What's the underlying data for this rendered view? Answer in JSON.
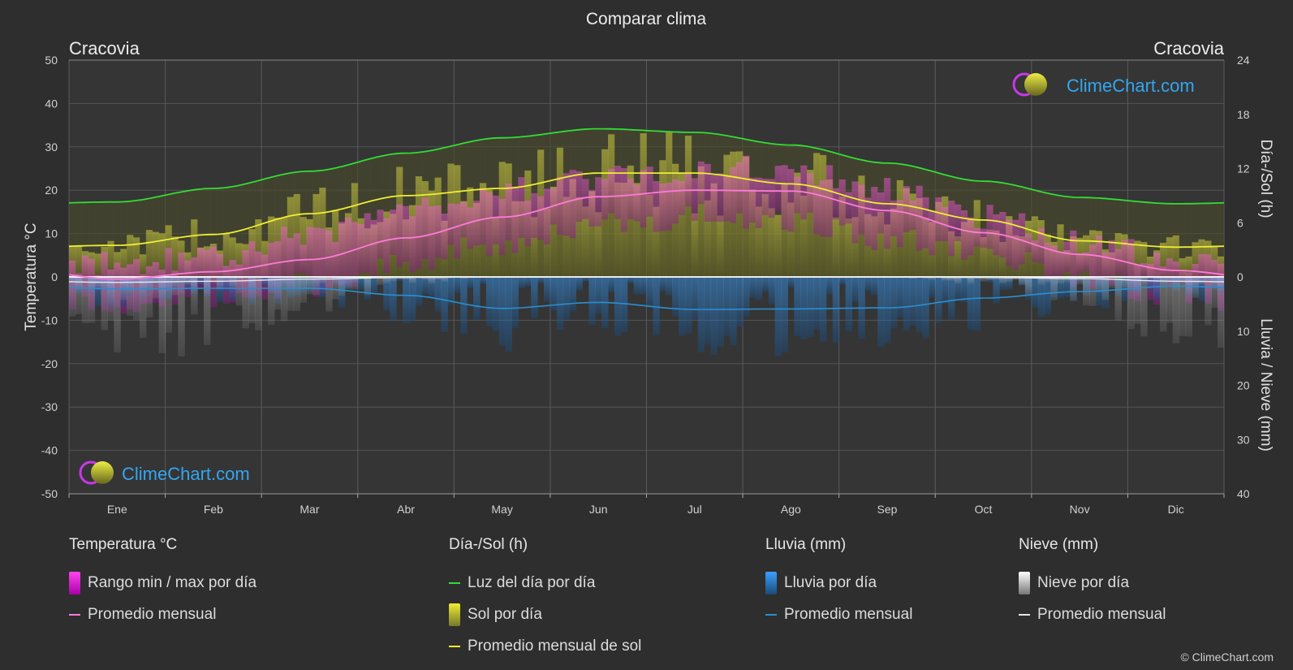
{
  "title": "Comparar clima",
  "location_left": "Cracovia",
  "location_right": "Cracovia",
  "logo_text": "ClimeChart.com",
  "copyright": "© ClimeChart.com",
  "legend": {
    "temp": {
      "heading": "Temperatura °C",
      "range": "Rango min / max por día",
      "avg": "Promedio mensual"
    },
    "sun": {
      "heading": "Día-/Sol (h)",
      "daylight": "Luz del día por día",
      "sun_day": "Sol por día",
      "sun_avg": "Promedio mensual de sol"
    },
    "rain": {
      "heading": "Lluvia (mm)",
      "rain_day": "Lluvia por día",
      "avg": "Promedio mensual"
    },
    "snow": {
      "heading": "Nieve (mm)",
      "snow_day": "Nieve por día",
      "avg": "Promedio mensual"
    }
  },
  "colors": {
    "temp_avg": "#ff7bd8",
    "temp_range": "#d020b0",
    "daylight": "#33dd33",
    "sun_avg": "#eeee33",
    "sun_fill": "#9a9a30",
    "rain": "#2a8fd0",
    "snow": "#d8d8d8",
    "background": "#2e2e2e"
  },
  "chart_data": {
    "type": "line",
    "x": [
      "Ene",
      "Feb",
      "Mar",
      "Abr",
      "May",
      "Jun",
      "Jul",
      "Ago",
      "Sep",
      "Oct",
      "Nov",
      "Dic"
    ],
    "y_left": {
      "label": "Temperatura °C",
      "ylim": [
        -50,
        50
      ],
      "ticks": [
        50,
        40,
        30,
        20,
        10,
        0,
        -10,
        -20,
        -30,
        -40,
        -50
      ]
    },
    "y_right_top": {
      "label": "Día-/Sol (h)",
      "ylim": [
        0,
        24
      ],
      "ticks": [
        24,
        18,
        12,
        6,
        0
      ]
    },
    "y_right_bottom": {
      "label": "Lluvia / Nieve (mm)",
      "ylim": [
        0,
        40
      ],
      "ticks": [
        0,
        10,
        20,
        30,
        40
      ]
    },
    "grid": true,
    "series": [
      {
        "name": "Promedio mensual",
        "axis": "temp",
        "values": [
          -0.5,
          1.2,
          4.0,
          9.0,
          13.8,
          18.5,
          20.0,
          19.8,
          15.3,
          10.2,
          5.2,
          1.5
        ]
      },
      {
        "name": "Luz del día por día",
        "axis": "sun",
        "values": [
          8.3,
          9.8,
          11.7,
          13.7,
          15.4,
          16.4,
          16.0,
          14.6,
          12.6,
          10.6,
          8.8,
          8.1
        ]
      },
      {
        "name": "Promedio mensual de sol",
        "axis": "sun",
        "values": [
          3.5,
          4.7,
          7.0,
          9.0,
          9.8,
          11.5,
          11.5,
          10.3,
          8.1,
          6.3,
          4.0,
          3.3
        ]
      },
      {
        "name": "Lluvia promedio mensual",
        "axis": "precip",
        "values": [
          2.2,
          2.1,
          2.1,
          3.4,
          5.8,
          4.7,
          6.0,
          5.9,
          5.7,
          3.9,
          2.7,
          1.7
        ]
      },
      {
        "name": "Nieve promedio mensual",
        "axis": "precip",
        "values": [
          1.0,
          0.8,
          0.4,
          0.1,
          0.0,
          0.0,
          0.0,
          0.0,
          0.0,
          0.1,
          0.3,
          0.8
        ]
      }
    ],
    "temp_range": {
      "min": [
        -6,
        -5,
        -2,
        3,
        8,
        12,
        14,
        13,
        9,
        5,
        0,
        -4
      ],
      "max": [
        3,
        5,
        10,
        15,
        20,
        23,
        25,
        25,
        20,
        14,
        8,
        4
      ]
    }
  }
}
